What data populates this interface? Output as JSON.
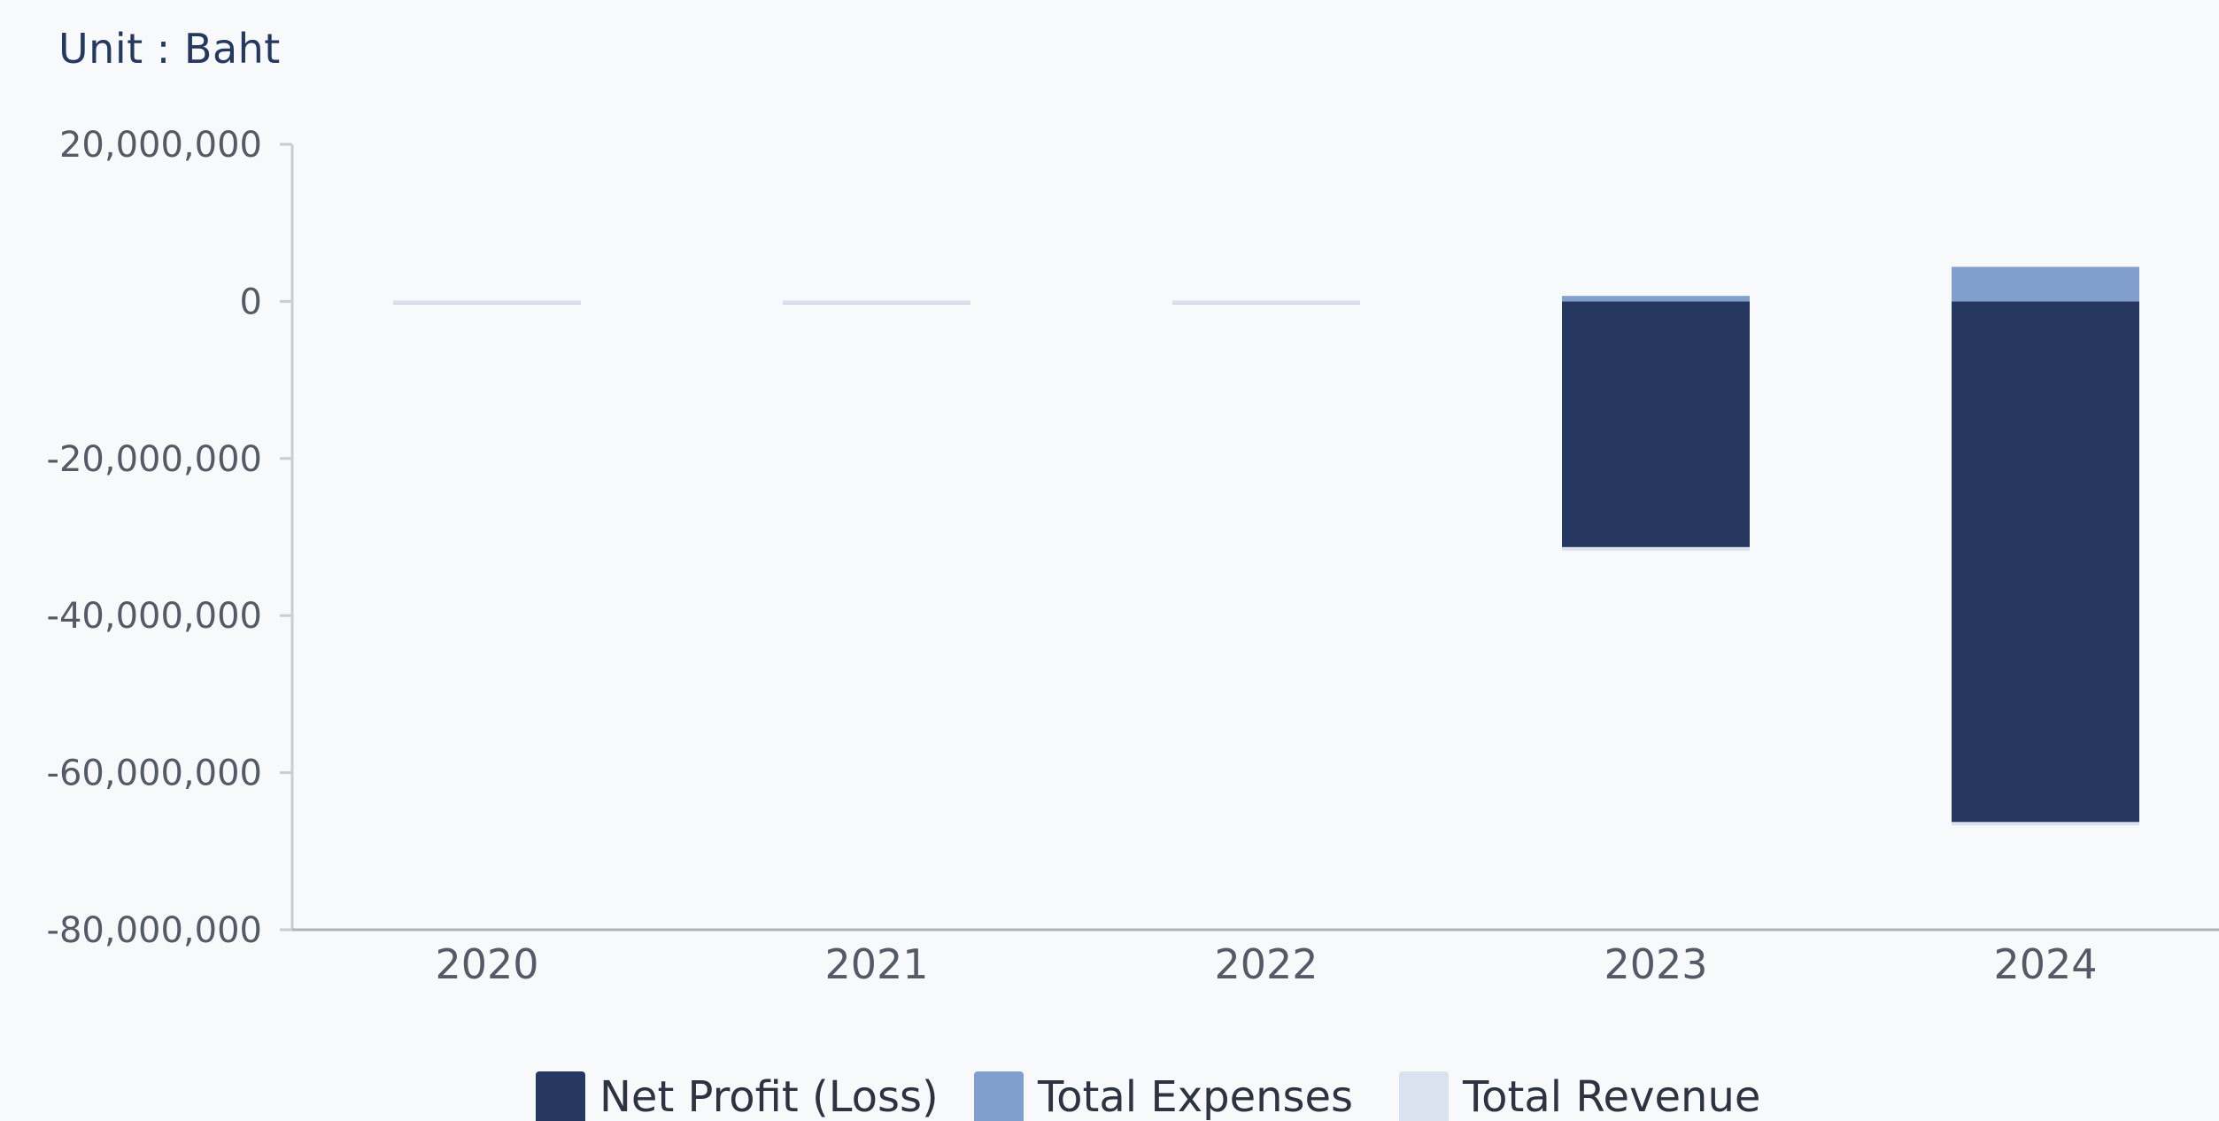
{
  "unit_label": "Unit : Baht",
  "colors": {
    "net_profit": "#26385f",
    "total_expenses": "#819fcd",
    "total_revenue": "#dbe2ef",
    "axis": "#c9ccd2",
    "tick_text": "#555b66",
    "background": "#f8f9fb"
  },
  "chart_data": {
    "type": "bar",
    "stacked": true,
    "categories": [
      "2020",
      "2021",
      "2022",
      "2023",
      "2024"
    ],
    "series": [
      {
        "name": "Net Profit (Loss)",
        "color": "#26385f",
        "values": [
          -100000,
          -100000,
          -100000,
          -31500000,
          -66500000
        ]
      },
      {
        "name": "Total Expenses",
        "color": "#819fcd",
        "values": [
          100000,
          100000,
          100000,
          700000,
          4400000
        ]
      },
      {
        "name": "Total Revenue",
        "color": "#dbe2ef",
        "values": [
          0,
          0,
          0,
          0,
          0
        ]
      }
    ],
    "y_ticks": [
      "20,000,000",
      "0",
      "-20,000,000",
      "-40,000,000",
      "-60,000,000",
      "-80,000,000"
    ],
    "ylim": [
      -80000000,
      20000000
    ],
    "grid": false,
    "legend_position": "bottom-center"
  }
}
